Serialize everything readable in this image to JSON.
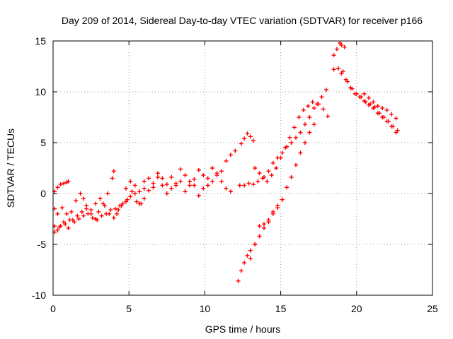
{
  "chart_data": {
    "type": "scatter",
    "title": "Day 209 of 2014, Sidereal Day-to-day VTEC variation (SDTVAR) for receiver p166",
    "xlabel": "GPS time / hours",
    "ylabel": "SDTVAR / TECUs",
    "xlim": [
      0,
      25
    ],
    "ylim": [
      -10,
      15
    ],
    "xticks": [
      0,
      5,
      10,
      15,
      20,
      25
    ],
    "yticks": [
      -10,
      -5,
      0,
      5,
      10,
      15
    ],
    "grid": true,
    "marker": "+",
    "color": "#ff0000",
    "series": [
      {
        "name": "trace-1",
        "x": [
          0.1,
          0.3,
          0.5,
          0.7,
          0.9,
          1.0
        ],
        "y": [
          0.2,
          0.6,
          0.9,
          1.0,
          1.1,
          1.2
        ]
      },
      {
        "name": "trace-2",
        "x": [
          0.1,
          0.3,
          0.6,
          0.9,
          1.2,
          1.5,
          1.8,
          2.0,
          2.2,
          2.5,
          2.8,
          3.0,
          3.3,
          3.6,
          3.9,
          4.0
        ],
        "y": [
          -1.5,
          -2.0,
          -1.4,
          -2.0,
          -1.8,
          -0.7,
          0.0,
          -0.5,
          -1.5,
          -2.0,
          -2.5,
          -1.8,
          -1.0,
          0.0,
          1.5,
          2.2
        ]
      },
      {
        "name": "trace-3",
        "x": [
          0.1,
          0.3,
          0.5,
          0.8,
          1.1,
          1.4,
          1.7,
          2.0,
          2.3,
          2.6,
          2.9,
          3.2,
          3.5,
          3.8,
          4.1,
          4.4
        ],
        "y": [
          -3.2,
          -3.6,
          -3.2,
          -3.0,
          -2.6,
          -2.8,
          -2.5,
          -2.2,
          -2.0,
          -2.4,
          -2.6,
          -2.2,
          -2.0,
          -1.6,
          -1.5,
          -1.2
        ]
      },
      {
        "name": "trace-4",
        "x": [
          0.1,
          0.4,
          0.7,
          1.0,
          1.3,
          1.6,
          1.9,
          2.2,
          2.5,
          2.8,
          3.1,
          3.4,
          3.7,
          4.0,
          4.3,
          4.6,
          4.9,
          5.2,
          5.5,
          5.8,
          6.0
        ],
        "y": [
          -3.8,
          -3.3,
          -2.8,
          -3.4,
          -2.6,
          -2.2,
          -1.8,
          -1.2,
          -1.6,
          -1.0,
          -0.5,
          -1.2,
          -2.0,
          -2.4,
          -1.6,
          -1.0,
          -0.6,
          0.2,
          -0.8,
          -1.0,
          0.5
        ]
      },
      {
        "name": "trace-5",
        "x": [
          4.2,
          4.5,
          4.8,
          5.1,
          5.4,
          5.7,
          6.0,
          6.3,
          6.6,
          6.9,
          7.2,
          7.5,
          7.8,
          8.1,
          8.4,
          8.7,
          9.0,
          9.3,
          9.6,
          9.9,
          10.2,
          10.5,
          10.8,
          11.1,
          11.4,
          11.7,
          12.0
        ],
        "y": [
          -2.0,
          -1.2,
          0.5,
          1.2,
          0.8,
          0.2,
          1.2,
          1.5,
          1.0,
          2.0,
          1.5,
          0.9,
          1.6,
          1.0,
          2.4,
          1.8,
          1.2,
          0.8,
          -0.2,
          0.5,
          1.5,
          2.5,
          1.8,
          2.2,
          3.2,
          3.8,
          4.2
        ]
      },
      {
        "name": "trace-6",
        "x": [
          4.8,
          5.1,
          5.4,
          5.7,
          6.0,
          6.3,
          6.6,
          6.9,
          7.2,
          7.5,
          7.8,
          8.1,
          8.4,
          8.7,
          9.0,
          9.3,
          9.6,
          9.9,
          10.2,
          10.5,
          10.8,
          11.1,
          11.4,
          11.7
        ],
        "y": [
          -0.8,
          -0.3,
          0.0,
          -1.0,
          -0.5,
          0.3,
          0.6,
          1.6,
          0.8,
          0.0,
          0.5,
          0.8,
          1.2,
          0.2,
          0.8,
          1.4,
          2.3,
          1.8,
          0.8,
          1.2,
          2.0,
          1.2,
          0.5,
          0.2
        ]
      },
      {
        "name": "trace-7",
        "x": [
          12.3,
          12.6,
          12.9,
          13.2,
          13.5,
          13.8,
          14.1,
          14.4,
          14.7,
          15.0,
          15.3,
          15.6,
          15.9,
          16.2,
          16.5,
          16.8,
          17.1,
          17.4,
          17.7,
          18.0
        ],
        "y": [
          0.8,
          0.8,
          1.0,
          0.9,
          1.2,
          1.5,
          1.2,
          1.8,
          2.5,
          3.5,
          4.5,
          5.5,
          6.5,
          7.5,
          8.2,
          8.6,
          9.0,
          8.8,
          9.5,
          10.2
        ]
      },
      {
        "name": "trace-8",
        "x": [
          13.3,
          13.6,
          13.9,
          14.2,
          14.5,
          14.8,
          15.1,
          15.4,
          15.7,
          16.0,
          16.3,
          16.6,
          16.9,
          17.2,
          17.5,
          17.8,
          18.1
        ],
        "y": [
          2.5,
          2.0,
          1.6,
          2.2,
          3.0,
          3.5,
          4.0,
          4.6,
          5.0,
          5.5,
          6.0,
          6.8,
          7.5,
          8.4,
          8.8,
          8.3,
          7.6
        ]
      },
      {
        "name": "trace-9",
        "x": [
          12.4,
          12.6,
          12.8,
          13.0,
          13.2
        ],
        "y": [
          4.9,
          5.4,
          5.9,
          5.6,
          5.2
        ]
      },
      {
        "name": "trace-10",
        "x": [
          12.2,
          12.4,
          12.6,
          12.8,
          13.0,
          13.3,
          13.6,
          13.9,
          14.2,
          14.5,
          14.8,
          15.1,
          15.4,
          15.7,
          16.0,
          16.3,
          16.6,
          16.9,
          17.2
        ],
        "y": [
          -8.6,
          -7.6,
          -6.8,
          -6.1,
          -5.6,
          -5.0,
          -4.2,
          -3.4,
          -2.8,
          -2.0,
          -1.4,
          -0.6,
          0.6,
          1.6,
          2.8,
          4.0,
          5.0,
          6.0,
          6.8
        ]
      },
      {
        "name": "trace-11",
        "x": [
          13.0,
          13.3,
          13.6,
          13.9,
          14.2,
          14.5,
          14.8,
          15.1
        ],
        "y": [
          -6.4,
          -5.0,
          -3.2,
          -3.0,
          -2.6,
          -1.8,
          -1.2,
          -0.6
        ]
      },
      {
        "name": "trace-12",
        "x": [
          18.5,
          18.7,
          18.9,
          19.0,
          19.2
        ],
        "y": [
          13.6,
          14.2,
          14.8,
          14.6,
          14.4
        ]
      },
      {
        "name": "trace-13",
        "x": [
          18.5,
          18.8,
          19.1,
          19.4,
          19.7,
          20.0,
          20.3,
          20.6,
          20.9,
          21.2,
          21.5,
          21.8,
          22.1,
          22.4,
          22.7
        ],
        "y": [
          12.2,
          12.3,
          12.0,
          11.0,
          10.3,
          9.8,
          9.5,
          9.0,
          8.8,
          8.5,
          7.9,
          7.5,
          7.1,
          6.6,
          6.2
        ]
      },
      {
        "name": "trace-14",
        "x": [
          19.0,
          19.3,
          19.6,
          19.9,
          20.2,
          20.5,
          20.8,
          21.1,
          21.4,
          21.7,
          22.0,
          22.3,
          22.6
        ],
        "y": [
          11.8,
          11.2,
          10.4,
          9.8,
          9.5,
          9.1,
          8.7,
          8.4,
          7.9,
          7.5,
          7.1,
          6.6,
          6.0
        ]
      },
      {
        "name": "trace-15",
        "x": [
          20.5,
          20.8,
          21.1,
          21.4,
          21.7,
          22.0,
          22.3,
          22.6
        ],
        "y": [
          9.8,
          9.4,
          9.0,
          8.6,
          8.4,
          8.2,
          7.8,
          7.4
        ]
      }
    ]
  }
}
